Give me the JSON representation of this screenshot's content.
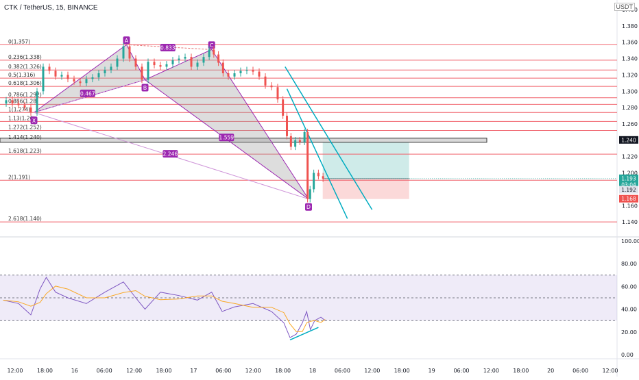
{
  "header": {
    "symbol_line": "CTK / TetherUS, 15, BINANCE",
    "currency": "USDT"
  },
  "price_axis": {
    "ticks": [
      "1.400",
      "1.380",
      "1.360",
      "1.340",
      "1.320",
      "1.300",
      "1.280",
      "1.260",
      "1.240",
      "1.220",
      "1.200",
      "1.180",
      "1.160",
      "1.140"
    ],
    "tick_values": [
      1.4,
      1.38,
      1.36,
      1.34,
      1.32,
      1.3,
      1.28,
      1.26,
      1.24,
      1.22,
      1.2,
      1.18,
      1.16,
      1.14
    ]
  },
  "rsi_axis": {
    "ticks": [
      "100.00",
      "80.00",
      "60.00",
      "40.00",
      "20.00",
      "0.00"
    ],
    "tick_values": [
      100,
      80,
      60,
      40,
      20,
      0
    ]
  },
  "time_axis": {
    "labels": [
      "12:00",
      "18:00",
      "16",
      "06:00",
      "12:00",
      "18:00",
      "17",
      "06:00",
      "12:00",
      "18:00",
      "18",
      "06:00",
      "12:00",
      "18:00",
      "19",
      "06:00",
      "12:00",
      "18:00",
      "20",
      "06:00",
      "12:00"
    ]
  },
  "badges": [
    {
      "text": "1.240",
      "bg": "#131722",
      "fg": "#ffffff",
      "price": 1.24
    },
    {
      "text": "1.193",
      "bg": "#26a69a",
      "fg": "#ffffff",
      "price": 1.193
    },
    {
      "text": "03:04",
      "bg": "#26a69a",
      "fg": "#ffffff",
      "price": 1.1855
    },
    {
      "text": "1.192",
      "bg": "#e0e3eb",
      "fg": "#131722",
      "price": 1.179
    },
    {
      "text": "1.168",
      "bg": "#ef5350",
      "fg": "#ffffff",
      "price": 1.168
    }
  ],
  "fib_levels": [
    {
      "label": "0(1.357)",
      "price": 1.357
    },
    {
      "label": "0.236(1.338)",
      "price": 1.338
    },
    {
      "label": "0.382(1.326)",
      "price": 1.326
    },
    {
      "label": "0.5(1.316)",
      "price": 1.316
    },
    {
      "label": "0.618(1.306)",
      "price": 1.306
    },
    {
      "label": "0.786(1.292)",
      "price": 1.292
    },
    {
      "label": "0.886(1.28)",
      "price": 1.284
    },
    {
      "label": "1(1.274)",
      "price": 1.274
    },
    {
      "label": "1.13(1.26)",
      "price": 1.263
    },
    {
      "label": "1.272(1.252)",
      "price": 1.252
    },
    {
      "label": "1.414(1.240)",
      "price": 1.24
    },
    {
      "label": "1.618(1.223)",
      "price": 1.223
    },
    {
      "label": "2(1.191)",
      "price": 1.191
    },
    {
      "label": "2.618(1.140)",
      "price": 1.14
    }
  ],
  "pattern": {
    "points": [
      {
        "name": "X",
        "t": 0.055,
        "price": 1.274
      },
      {
        "name": "A",
        "t": 0.205,
        "price": 1.357
      },
      {
        "name": "B",
        "t": 0.235,
        "price": 1.314
      },
      {
        "name": "C",
        "t": 0.343,
        "price": 1.351
      },
      {
        "name": "D",
        "t": 0.5,
        "price": 1.168
      }
    ],
    "ratios": [
      {
        "text": "0.467",
        "t": 0.142,
        "price": 1.297
      },
      {
        "text": "0.833",
        "t": 0.272,
        "price": 1.353
      },
      {
        "text": "1.559",
        "t": 0.367,
        "price": 1.243
      },
      {
        "text": "2.246",
        "t": 0.276,
        "price": 1.223
      }
    ]
  },
  "position": {
    "entry": 1.193,
    "target": 1.24,
    "stop": 1.168,
    "t_start": 0.523,
    "t_end": 0.663
  },
  "chart_data": {
    "type": "line",
    "title": "CTK / TetherUS, 15, BINANCE",
    "xlabel": "",
    "ylabel": "USDT",
    "ylim": [
      1.125,
      1.405
    ],
    "series": [
      {
        "values": [
          [
            0.005,
            1.285
          ],
          [
            0.015,
            1.289
          ],
          [
            0.025,
            1.285
          ],
          [
            0.035,
            1.283
          ],
          [
            0.045,
            1.28
          ],
          [
            0.055,
            1.274
          ],
          [
            0.065,
            1.3
          ],
          [
            0.075,
            1.33
          ],
          [
            0.085,
            1.325
          ],
          [
            0.095,
            1.318
          ],
          [
            0.105,
            1.32
          ],
          [
            0.115,
            1.315
          ],
          [
            0.125,
            1.312
          ],
          [
            0.135,
            1.31
          ],
          [
            0.145,
            1.315
          ],
          [
            0.155,
            1.317
          ],
          [
            0.165,
            1.322
          ],
          [
            0.175,
            1.326
          ],
          [
            0.185,
            1.33
          ],
          [
            0.195,
            1.34
          ],
          [
            0.205,
            1.355
          ],
          [
            0.215,
            1.34
          ],
          [
            0.225,
            1.33
          ],
          [
            0.235,
            1.314
          ],
          [
            0.245,
            1.336
          ],
          [
            0.255,
            1.332
          ],
          [
            0.265,
            1.33
          ],
          [
            0.275,
            1.333
          ],
          [
            0.285,
            1.338
          ],
          [
            0.295,
            1.34
          ],
          [
            0.305,
            1.342
          ],
          [
            0.315,
            1.33
          ],
          [
            0.325,
            1.335
          ],
          [
            0.335,
            1.342
          ],
          [
            0.343,
            1.351
          ],
          [
            0.35,
            1.345
          ],
          [
            0.358,
            1.335
          ],
          [
            0.365,
            1.322
          ],
          [
            0.375,
            1.318
          ],
          [
            0.385,
            1.322
          ],
          [
            0.395,
            1.325
          ],
          [
            0.405,
            1.326
          ],
          [
            0.415,
            1.324
          ],
          [
            0.425,
            1.318
          ],
          [
            0.435,
            1.307
          ],
          [
            0.445,
            1.305
          ],
          [
            0.455,
            1.29
          ],
          [
            0.462,
            1.27
          ],
          [
            0.468,
            1.245
          ],
          [
            0.475,
            1.232
          ],
          [
            0.482,
            1.24
          ],
          [
            0.49,
            1.238
          ],
          [
            0.497,
            1.25
          ],
          [
            0.5,
            1.168
          ],
          [
            0.505,
            1.18
          ],
          [
            0.512,
            1.2
          ],
          [
            0.52,
            1.196
          ],
          [
            0.527,
            1.193
          ]
        ]
      }
    ],
    "rsi": {
      "ylim": [
        0,
        100
      ],
      "band": [
        30,
        70
      ],
      "values": [
        [
          0.005,
          48
        ],
        [
          0.03,
          45
        ],
        [
          0.05,
          35
        ],
        [
          0.065,
          58
        ],
        [
          0.075,
          68
        ],
        [
          0.09,
          55
        ],
        [
          0.11,
          50
        ],
        [
          0.14,
          45
        ],
        [
          0.17,
          55
        ],
        [
          0.2,
          64
        ],
        [
          0.22,
          50
        ],
        [
          0.235,
          40
        ],
        [
          0.26,
          55
        ],
        [
          0.29,
          52
        ],
        [
          0.32,
          48
        ],
        [
          0.343,
          55
        ],
        [
          0.36,
          38
        ],
        [
          0.38,
          42
        ],
        [
          0.41,
          45
        ],
        [
          0.44,
          38
        ],
        [
          0.46,
          28
        ],
        [
          0.47,
          15
        ],
        [
          0.48,
          18
        ],
        [
          0.49,
          28
        ],
        [
          0.497,
          38
        ],
        [
          0.503,
          22
        ],
        [
          0.51,
          30
        ],
        [
          0.52,
          33
        ],
        [
          0.527,
          30
        ]
      ]
    }
  }
}
